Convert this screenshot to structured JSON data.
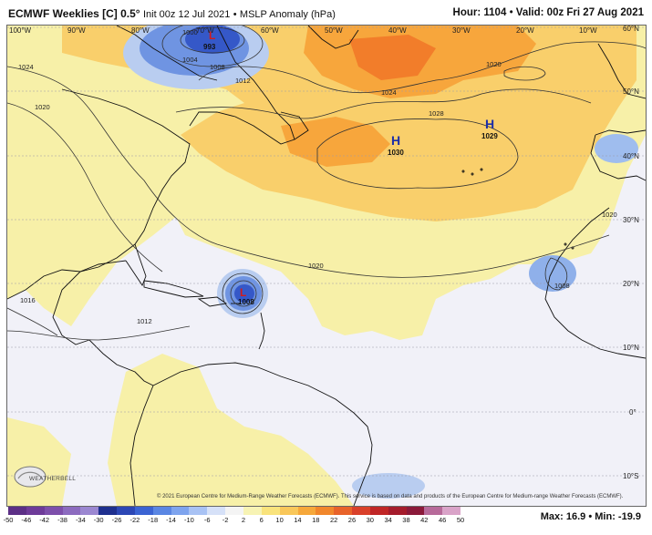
{
  "header": {
    "title": "ECMWF Weeklies [C] 0.5°",
    "init": "Init 00z 12 Jul 2021",
    "separator": "•",
    "field": "MSLP Anomaly (hPa)",
    "hour_label": "Hour: 1104",
    "valid_label": "Valid: 00z Fri 27 Aug 2021"
  },
  "map": {
    "longitude_labels": [
      "100°W",
      "90°W",
      "80°W",
      "70°W",
      "60°W",
      "50°W",
      "40°W",
      "30°W",
      "20°W",
      "10°W"
    ],
    "latitude_labels": [
      "60°N",
      "50°N",
      "40°N",
      "30°N",
      "20°N",
      "10°N",
      "0°",
      "10°S"
    ],
    "highs": [
      {
        "letter": "H",
        "value": "1030"
      },
      {
        "letter": "H",
        "value": "1029"
      }
    ],
    "lows": [
      {
        "letter": "L",
        "value": "993"
      },
      {
        "letter": "L",
        "value": "1008"
      }
    ],
    "contour_labels": {
      "c1004": "1004",
      "c1008": "1008",
      "c1012": "1012",
      "c1016": "1016",
      "c1020": "1020",
      "c1024": "1024",
      "c1028": "1028",
      "c1000": "1000"
    },
    "colors": {
      "ocean_neutral": "#f1f1f8",
      "positive_light": "#f7f0a8",
      "positive_mid": "#f9cf6b",
      "positive_strong": "#f7a63c",
      "positive_max": "#f27d2a",
      "negative_light": "#b9cdf0",
      "negative_mid": "#6f94e2",
      "negative_strong": "#3558c8"
    }
  },
  "branding": {
    "logo_text": "WEATHERBELL"
  },
  "copyright": "© 2021 European Centre for Medium-Range Weather Forecasts (ECMWF). This service is based on data and products of the European Centre for Medium-range Weather Forecasts (ECMWF).",
  "colorbar": {
    "ticks": [
      "-50",
      "-46",
      "-42",
      "-38",
      "-34",
      "-30",
      "-26",
      "-22",
      "-18",
      "-14",
      "-10",
      "-6",
      "-2",
      "2",
      "6",
      "10",
      "14",
      "18",
      "22",
      "26",
      "30",
      "34",
      "38",
      "42",
      "46",
      "50"
    ],
    "colors": [
      "#5c2f86",
      "#6e3b99",
      "#7d4fab",
      "#8c6bbf",
      "#9b87d1",
      "#1e2f8e",
      "#2c47b5",
      "#3b64d3",
      "#5a86e3",
      "#7ea4ee",
      "#a8c2f4",
      "#d6e1f8",
      "#f4f4f4",
      "#f7f3b4",
      "#f9e37c",
      "#f9c75a",
      "#f6a83b",
      "#f1872c",
      "#e8632a",
      "#d9402a",
      "#c02626",
      "#a51c2c",
      "#8b1a3a",
      "#b76a9a",
      "#d9a3c8"
    ]
  },
  "maxmin": "Max: 16.9 • Min: -19.9"
}
